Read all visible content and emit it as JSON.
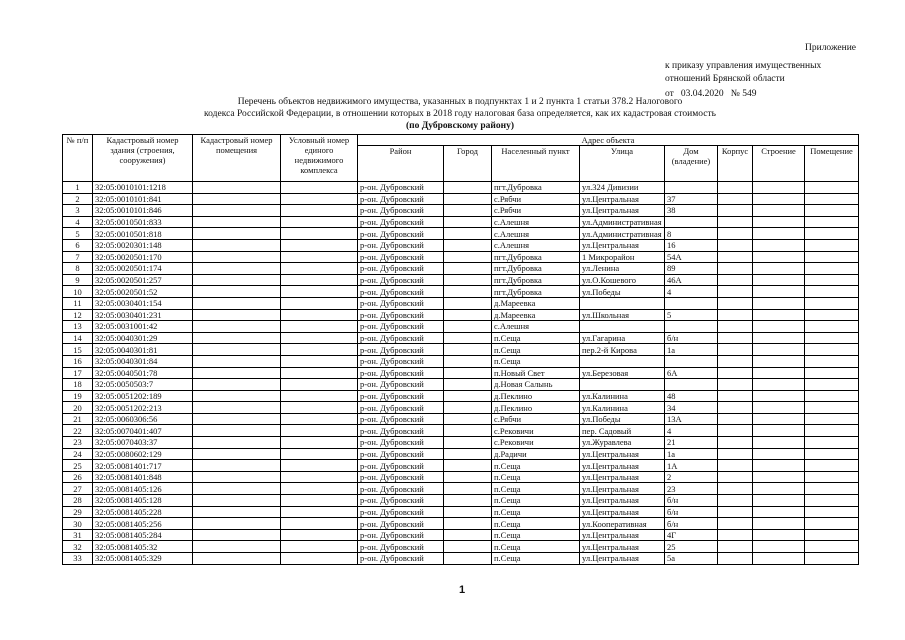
{
  "header": {
    "appendix": "Приложение",
    "order_lines": [
      "к приказу управления имущественных",
      "отношений Брянской области"
    ],
    "date_line": "от   03.04.2020   № 549"
  },
  "title": {
    "lines": [
      "Перечень объектов недвижимого имущества, указанных в подпунктах 1 и 2 пункта 1 статьи 378.2 Налогового",
      "кодекса Российской Федерации, в отношении которых в 2018 году налоговая база определяется, как их кадастровая стоимость",
      "(по Дубровскому району)"
    ]
  },
  "table": {
    "columns": {
      "n": "№ п/п",
      "cadastral": "Кадастровый номер здания (строения, сооружения)",
      "premises_cadastral": "Кадастровый номер помещения",
      "conditional": "Условный номер единого недвижимого комплекса",
      "address": "Адрес объекта",
      "district": "Район",
      "city": "Город",
      "locality": "Населенный пункт",
      "street": "Улица",
      "house": "Дом (владение)",
      "building": "Корпус",
      "structure": "Строение",
      "premises": "Помещение"
    },
    "rows": [
      {
        "n": 1,
        "cadastral": "32:05:0010101:1218",
        "district": "р-он. Дубровский",
        "locality": "пгт.Дубровка",
        "street": "ул.324 Дивизии"
      },
      {
        "n": 2,
        "cadastral": "32:05:0010101:841",
        "district": "р-он. Дубровский",
        "locality": "с.Рябчи",
        "street": "ул.Центральная",
        "house": "37"
      },
      {
        "n": 3,
        "cadastral": "32:05:0010101:846",
        "district": "р-он. Дубровский",
        "locality": "с.Рябчи",
        "street": "ул.Центральная",
        "house": "38"
      },
      {
        "n": 4,
        "cadastral": "32:05:0010501:833",
        "district": "р-он. Дубровский",
        "locality": "с.Алешня",
        "street": "ул.Административная"
      },
      {
        "n": 5,
        "cadastral": "32:05:0010501:818",
        "district": "р-он. Дубровский",
        "locality": "с.Алешня",
        "street": "ул.Административная",
        "house": "8"
      },
      {
        "n": 6,
        "cadastral": "32:05:0020301:148",
        "district": "р-он. Дубровский",
        "locality": "с.Алешня",
        "street": "ул.Центральная",
        "house": "16"
      },
      {
        "n": 7,
        "cadastral": "32:05:0020501:170",
        "district": "р-он. Дубровский",
        "locality": "пгт.Дубровка",
        "street": "1 Микрорайон",
        "house": "54А"
      },
      {
        "n": 8,
        "cadastral": "32:05:0020501:174",
        "district": "р-он. Дубровский",
        "locality": "пгт.Дубровка",
        "street": "ул.Ленина",
        "house": "89"
      },
      {
        "n": 9,
        "cadastral": "32:05:0020501:257",
        "district": "р-он. Дубровский",
        "locality": "пгт.Дубровка",
        "street": "ул.О.Кошевого",
        "house": "46А"
      },
      {
        "n": 10,
        "cadastral": "32:05:0020501:52",
        "district": "р-он. Дубровский",
        "locality": "пгт.Дубровка",
        "street": "ул.Победы",
        "house": "4"
      },
      {
        "n": 11,
        "cadastral": "32:05:0030401:154",
        "district": "р-он. Дубровский",
        "locality": "д.Мареевка"
      },
      {
        "n": 12,
        "cadastral": "32:05:0030401:231",
        "district": "р-он. Дубровский",
        "locality": "д.Мареевка",
        "street": "ул.Школьная",
        "house": "5"
      },
      {
        "n": 13,
        "cadastral": "32:05:0031001:42",
        "district": "р-он. Дубровский",
        "locality": "с.Алешня"
      },
      {
        "n": 14,
        "cadastral": "32:05:0040301:29",
        "district": "р-он. Дубровский",
        "locality": "п.Сеща",
        "street": "ул.Гагарина",
        "house": "б/н"
      },
      {
        "n": 15,
        "cadastral": "32:05:0040301:81",
        "district": "р-он. Дубровский",
        "locality": "п.Сеща",
        "street": "пер.2-й Кирова",
        "house": "1а"
      },
      {
        "n": 16,
        "cadastral": "32:05:0040301:84",
        "district": "р-он. Дубровский",
        "locality": "п.Сеща"
      },
      {
        "n": 17,
        "cadastral": "32:05:0040501:78",
        "district": "р-он. Дубровский",
        "locality": "п.Новый Свет",
        "street": "ул.Березовая",
        "house": "6А"
      },
      {
        "n": 18,
        "cadastral": "32:05:0050503:7",
        "district": "р-он. Дубровский",
        "locality": "д.Новая Салынь"
      },
      {
        "n": 19,
        "cadastral": "32:05:0051202:189",
        "district": "р-он. Дубровский",
        "locality": "д.Пеклино",
        "street": "ул.Калинина",
        "house": "48"
      },
      {
        "n": 20,
        "cadastral": "32:05:0051202:213",
        "district": "р-он. Дубровский",
        "locality": "д.Пеклино",
        "street": "ул.Калинина",
        "house": "34"
      },
      {
        "n": 21,
        "cadastral": "32:05:0060306:56",
        "district": "р-он. Дубровский",
        "locality": "с.Рябчи",
        "street": "ул.Победы",
        "house": "13А"
      },
      {
        "n": 22,
        "cadastral": "32:05:0070401:407",
        "district": "р-он. Дубровский",
        "locality": "с.Рековичи",
        "street": "пер. Садовый",
        "house": "4"
      },
      {
        "n": 23,
        "cadastral": "32:05:0070403:37",
        "district": "р-он. Дубровский",
        "locality": "с.Рековичи",
        "street": "ул.Журавлева",
        "house": "21"
      },
      {
        "n": 24,
        "cadastral": "32:05:0080602:129",
        "district": "р-он. Дубровский",
        "locality": "д.Радичи",
        "street": "ул.Центральная",
        "house": "1а"
      },
      {
        "n": 25,
        "cadastral": "32:05:0081401:717",
        "district": "р-он. Дубровский",
        "locality": "п.Сеща",
        "street": "ул.Центральная",
        "house": "1А"
      },
      {
        "n": 26,
        "cadastral": "32:05:0081401:848",
        "district": "р-он. Дубровский",
        "locality": "п.Сеща",
        "street": "ул.Центральная",
        "house": "2"
      },
      {
        "n": 27,
        "cadastral": "32:05:0081405:126",
        "district": "р-он. Дубровский",
        "locality": "п.Сеща",
        "street": "ул.Центральная",
        "house": "23"
      },
      {
        "n": 28,
        "cadastral": "32:05:0081405:128",
        "district": "р-он. Дубровский",
        "locality": "п.Сеща",
        "street": "ул.Центральная",
        "house": "б/н"
      },
      {
        "n": 29,
        "cadastral": "32:05:0081405:228",
        "district": "р-он. Дубровский",
        "locality": "п.Сеща",
        "street": "ул.Центральная",
        "house": "б/н"
      },
      {
        "n": 30,
        "cadastral": "32:05:0081405:256",
        "district": "р-он. Дубровский",
        "locality": "п.Сеща",
        "street": "ул.Кооперативная",
        "house": "б/н"
      },
      {
        "n": 31,
        "cadastral": "32:05:0081405:284",
        "district": "р-он. Дубровский",
        "locality": "п.Сеща",
        "street": "ул.Центральная",
        "house": "4Г"
      },
      {
        "n": 32,
        "cadastral": "32:05:0081405:32",
        "district": "р-он. Дубровский",
        "locality": "п.Сеща",
        "street": "ул.Центральная",
        "house": "25"
      },
      {
        "n": 33,
        "cadastral": "32:05:0081405:329",
        "district": "р-он. Дубровский",
        "locality": "п.Сеща",
        "street": "ул.Центральная",
        "house": "5а"
      }
    ]
  },
  "page_number": "1"
}
